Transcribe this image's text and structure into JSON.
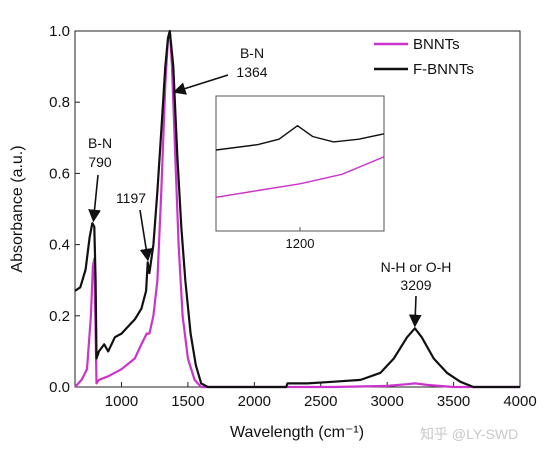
{
  "chart_data": {
    "type": "line",
    "title": "",
    "xlabel": "Wavelength (cm⁻¹)",
    "ylabel": "Absorbance (a.u.)",
    "xlim": [
      650,
      4000
    ],
    "ylim": [
      0,
      1.0
    ],
    "x_ticks": [
      1000,
      1500,
      2000,
      2500,
      3000,
      3500,
      4000
    ],
    "x_tick_labels": [
      "1000",
      "1500",
      "2000",
      "2500",
      "3000",
      "3500",
      "4000"
    ],
    "y_ticks": [
      0.0,
      0.2,
      0.4,
      0.6,
      0.8,
      1.0
    ],
    "y_tick_labels": [
      "0.0",
      "0.2",
      "0.4",
      "0.6",
      "0.8",
      "1.0"
    ],
    "legend": {
      "placement": "top-right"
    },
    "series": [
      {
        "name": "BNNTs",
        "color": "#cc33cc",
        "points": [
          [
            650,
            0.0
          ],
          [
            700,
            0.02
          ],
          [
            740,
            0.05
          ],
          [
            770,
            0.2
          ],
          [
            785,
            0.34
          ],
          [
            795,
            0.36
          ],
          [
            803,
            0.2
          ],
          [
            812,
            0.01
          ],
          [
            830,
            0.02
          ],
          [
            900,
            0.03
          ],
          [
            1000,
            0.05
          ],
          [
            1100,
            0.08
          ],
          [
            1150,
            0.12
          ],
          [
            1190,
            0.15
          ],
          [
            1210,
            0.15
          ],
          [
            1240,
            0.2
          ],
          [
            1270,
            0.3
          ],
          [
            1300,
            0.55
          ],
          [
            1330,
            0.85
          ],
          [
            1350,
            0.98
          ],
          [
            1364,
            1.0
          ],
          [
            1380,
            0.9
          ],
          [
            1400,
            0.7
          ],
          [
            1430,
            0.4
          ],
          [
            1460,
            0.2
          ],
          [
            1500,
            0.08
          ],
          [
            1550,
            0.02
          ],
          [
            1600,
            0.0
          ],
          [
            2000,
            0.0
          ],
          [
            2250,
            0.0
          ],
          [
            2600,
            0.0
          ],
          [
            3000,
            0.003
          ],
          [
            3150,
            0.008
          ],
          [
            3209,
            0.01
          ],
          [
            3300,
            0.006
          ],
          [
            3500,
            0.0
          ],
          [
            4000,
            0.0
          ]
        ]
      },
      {
        "name": "F-BNNTs",
        "color": "#111111",
        "points": [
          [
            650,
            0.27
          ],
          [
            690,
            0.28
          ],
          [
            730,
            0.33
          ],
          [
            760,
            0.42
          ],
          [
            780,
            0.46
          ],
          [
            795,
            0.45
          ],
          [
            805,
            0.3
          ],
          [
            812,
            0.08
          ],
          [
            830,
            0.1
          ],
          [
            870,
            0.12
          ],
          [
            900,
            0.1
          ],
          [
            950,
            0.14
          ],
          [
            1000,
            0.15
          ],
          [
            1050,
            0.17
          ],
          [
            1100,
            0.19
          ],
          [
            1150,
            0.22
          ],
          [
            1185,
            0.27
          ],
          [
            1197,
            0.35
          ],
          [
            1210,
            0.32
          ],
          [
            1240,
            0.4
          ],
          [
            1270,
            0.55
          ],
          [
            1300,
            0.72
          ],
          [
            1330,
            0.9
          ],
          [
            1350,
            0.98
          ],
          [
            1364,
            1.0
          ],
          [
            1390,
            0.9
          ],
          [
            1420,
            0.65
          ],
          [
            1450,
            0.45
          ],
          [
            1480,
            0.3
          ],
          [
            1520,
            0.15
          ],
          [
            1560,
            0.06
          ],
          [
            1600,
            0.01
          ],
          [
            1650,
            0.0
          ],
          [
            2000,
            0.0
          ],
          [
            2240,
            0.0
          ],
          [
            2250,
            0.01
          ],
          [
            2400,
            0.01
          ],
          [
            2600,
            0.015
          ],
          [
            2800,
            0.02
          ],
          [
            2950,
            0.04
          ],
          [
            3050,
            0.08
          ],
          [
            3150,
            0.14
          ],
          [
            3209,
            0.165
          ],
          [
            3260,
            0.14
          ],
          [
            3350,
            0.08
          ],
          [
            3450,
            0.04
          ],
          [
            3550,
            0.015
          ],
          [
            3650,
            0.0
          ],
          [
            4000,
            0.0
          ]
        ]
      }
    ],
    "annotations": [
      {
        "label_line1": "B-N",
        "label_line2": "790",
        "x": 790,
        "y": 0.46
      },
      {
        "label_line1": "1197",
        "label_line2": "",
        "x": 1197,
        "y": 0.35
      },
      {
        "label_line1": "B-N",
        "label_line2": "1364",
        "x": 1364,
        "y": 0.83
      },
      {
        "label_line1": "N-H or O-H",
        "label_line2": "3209",
        "x": 3209,
        "y": 0.165
      }
    ],
    "inset": {
      "x_ticks": [
        1200
      ],
      "x_tick_labels": [
        "1200"
      ],
      "xlim": [
        1100,
        1300
      ],
      "ylim": [
        0,
        1
      ],
      "series": [
        {
          "name": "F-BNNTs",
          "color": "#111111",
          "points": [
            [
              1100,
              0.6
            ],
            [
              1150,
              0.64
            ],
            [
              1175,
              0.68
            ],
            [
              1197,
              0.78
            ],
            [
              1215,
              0.7
            ],
            [
              1240,
              0.66
            ],
            [
              1270,
              0.68
            ],
            [
              1300,
              0.72
            ]
          ]
        },
        {
          "name": "BNNTs",
          "color": "#cc33cc",
          "points": [
            [
              1100,
              0.25
            ],
            [
              1150,
              0.3
            ],
            [
              1200,
              0.35
            ],
            [
              1250,
              0.42
            ],
            [
              1300,
              0.55
            ]
          ]
        }
      ]
    }
  },
  "watermark": "知乎 @LY-SWD"
}
